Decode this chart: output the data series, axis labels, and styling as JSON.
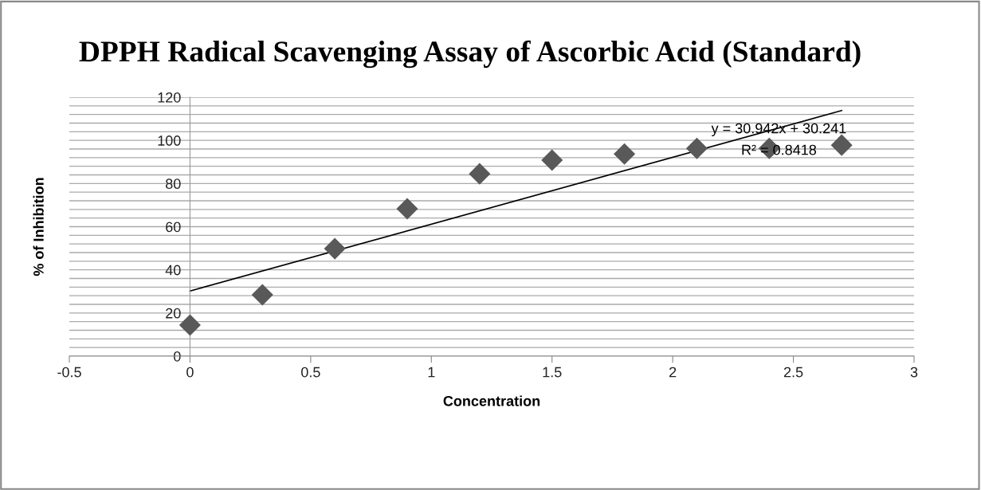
{
  "chart_data": {
    "type": "scatter",
    "title": "DPPH Radical Scavenging Assay of Ascorbic Acid (Standard)",
    "xlabel": "Concentration",
    "ylabel": "% of Inhibition",
    "x": [
      0,
      0.3,
      0.6,
      0.9,
      1.2,
      1.5,
      1.8,
      2.1,
      2.4,
      2.7
    ],
    "series": [
      {
        "color": "#595959",
        "marker": "diamond",
        "values": [
          14.4,
          28.4,
          49.8,
          68.3,
          84.5,
          90.8,
          93.7,
          96.3,
          96.3,
          97.8
        ]
      },
      {
        "type": "line",
        "color": "#000000",
        "x": [
          0,
          2.7
        ],
        "values": [
          30.2,
          113.8
        ],
        "line_style": "solid"
      }
    ],
    "annotations": [
      "y = 30.942x + 30.241",
      "R² = 0.8418"
    ],
    "xlim": [
      -0.5,
      3
    ],
    "xticks": [
      -0.5,
      0,
      0.5,
      1,
      1.5,
      2,
      2.5,
      3
    ],
    "ylim": [
      0,
      120
    ],
    "yticks": [
      0,
      {
        "value": 4,
        "label": null
      },
      {
        "value": 8,
        "label": null
      },
      {
        "value": 12,
        "label": null
      },
      {
        "value": 16,
        "label": null
      },
      20,
      {
        "value": 24,
        "label": null
      },
      {
        "value": 28,
        "label": null
      },
      {
        "value": 32,
        "label": null
      },
      {
        "value": 36,
        "label": null
      },
      40,
      {
        "value": 44,
        "label": null
      },
      {
        "value": 48,
        "label": null
      },
      {
        "value": 52,
        "label": null
      },
      {
        "value": 56,
        "label": null
      },
      60,
      {
        "value": 64,
        "label": null
      },
      {
        "value": 68,
        "label": null
      },
      {
        "value": 72,
        "label": null
      },
      {
        "value": 76,
        "label": null
      },
      80,
      {
        "value": 84,
        "label": null
      },
      {
        "value": 88,
        "label": null
      },
      {
        "value": 92,
        "label": null
      },
      {
        "value": 96,
        "label": null
      },
      100,
      {
        "value": 104,
        "label": null
      },
      {
        "value": 108,
        "label": null
      },
      {
        "value": 112,
        "label": null
      },
      {
        "value": 116,
        "label": null
      },
      120
    ],
    "grid": "y",
    "legend": false
  }
}
